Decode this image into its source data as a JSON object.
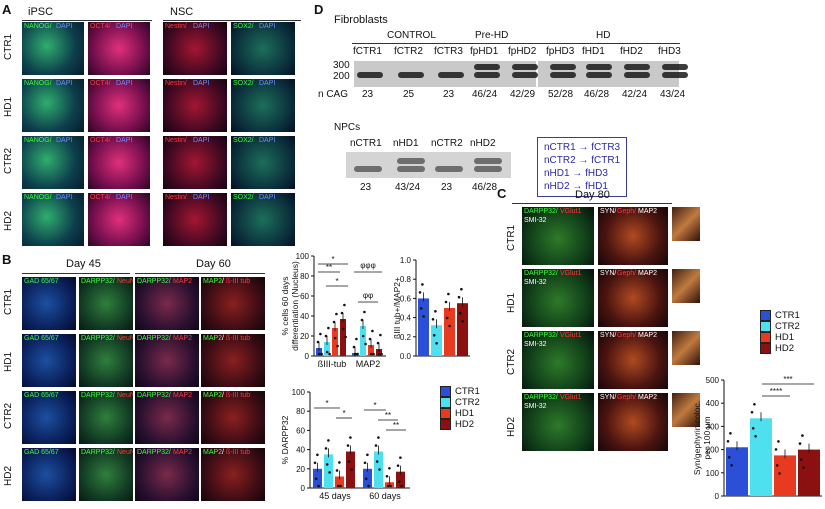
{
  "panel_letters": {
    "a": "A",
    "b": "B",
    "c": "C",
    "d": "D"
  },
  "panelA": {
    "group_ipsc": "iPSC",
    "group_nsc": "NSC",
    "rows": [
      "CTR1",
      "HD1",
      "CTR2",
      "HD2"
    ],
    "row_marks": {
      "nanog": [
        "NANOG/",
        "NANOG/",
        "NANOG/",
        "NANOG/"
      ],
      "dapi": [
        "DAPI",
        "DAPI",
        "DAPI",
        "DAPI"
      ],
      "oct4": [
        "OCT4/",
        "OCT4/",
        "OCT4/",
        "OCT4/"
      ],
      "nestin": [
        "Nestin/",
        "Nestin/",
        "Nestin/",
        "Nestin/"
      ],
      "sox2": [
        "SOX2/",
        "SOX2/",
        "SOX2/",
        "SOX2/"
      ]
    }
  },
  "panelB": {
    "day45": "Day 45",
    "day60": "Day 60",
    "rows": [
      "CTR1",
      "HD1",
      "CTR2",
      "HD2"
    ],
    "gad": "GAD 65/67",
    "darpp": "DARPP32/",
    "neun": "NeuN",
    "map2": "MAP2",
    "btub": "ß-III tub",
    "sep": "/"
  },
  "panelC": {
    "day80": "Day 80",
    "rows": [
      "CTR1",
      "HD1",
      "CTR2",
      "HD2"
    ],
    "darpp": "DARPP32/",
    "vglut": "VGlut1",
    "smi": "SMI-32",
    "syn": "SYN/",
    "geph": "Geph/",
    "map2": "MAP2"
  },
  "panelD": {
    "fibroblasts": "Fibroblasts",
    "groups": [
      "CONTROL",
      "Pre-HD",
      "HD"
    ],
    "lanes": [
      "fCTR1",
      "fCTR2",
      "fCTR3",
      "fpHD1",
      "fpHD2",
      "fpHD3",
      "fHD1",
      "fHD2",
      "fHD3"
    ],
    "ncag_label": "n CAG",
    "ncag": [
      "23",
      "25",
      "23",
      "46/24",
      "42/29",
      "52/28",
      "46/28",
      "42/24",
      "43/24"
    ],
    "markers": [
      "300",
      "200"
    ],
    "npcs": "NPCs",
    "npc_lanes": [
      "nCTR1",
      "nHD1",
      "nCTR2",
      "nHD2"
    ],
    "npc_cag": [
      "23",
      "43/24",
      "23",
      "46/28"
    ],
    "mapping": [
      "nCTR1 → fCTR3",
      "nCTR2 → fCTR1",
      "nHD1 → fHD3",
      "nHD2 → fHD1"
    ]
  },
  "colors": {
    "CTR1": "#2b4fd6",
    "CTR2": "#4fe0f0",
    "HD1": "#e83a20",
    "HD2": "#8b1010"
  },
  "legend": [
    "CTR1",
    "CTR2",
    "HD1",
    "HD2"
  ],
  "chart_data": [
    {
      "type": "bar",
      "id": "cells60",
      "categories": [
        "ßIII-tub",
        "MAP2"
      ],
      "series": [
        {
          "name": "CTR1",
          "values": [
            8,
            3
          ]
        },
        {
          "name": "CTR2",
          "values": [
            14,
            30
          ]
        },
        {
          "name": "HD1",
          "values": [
            28,
            11
          ]
        },
        {
          "name": "HD2",
          "values": [
            37,
            7
          ]
        }
      ],
      "ylabel": "% cells 60 days differentiation (Nucleus)",
      "ylim": [
        0,
        100
      ],
      "yticks": [
        0,
        20,
        40,
        60,
        80,
        100
      ],
      "annotations": [
        "*",
        "**",
        "*",
        "φφφ",
        "φφ"
      ]
    },
    {
      "type": "bar",
      "id": "ratio",
      "series": [
        {
          "name": "CTR1",
          "values": [
            0.6
          ]
        },
        {
          "name": "CTR2",
          "values": [
            0.32
          ]
        },
        {
          "name": "HD1",
          "values": [
            0.5
          ]
        },
        {
          "name": "HD2",
          "values": [
            0.55
          ]
        }
      ],
      "ylabel": "ßIII tub+/MAP2+",
      "ylim": [
        0,
        1.0
      ],
      "yticks": [
        "0.0",
        "0.2",
        "0.4",
        "0.6",
        "0.8",
        "1.0"
      ]
    },
    {
      "type": "bar",
      "id": "darpp",
      "categories": [
        "45 days",
        "60 days"
      ],
      "series": [
        {
          "name": "CTR1",
          "values": [
            20,
            20
          ]
        },
        {
          "name": "CTR2",
          "values": [
            35,
            38
          ]
        },
        {
          "name": "HD1",
          "values": [
            12,
            6
          ]
        },
        {
          "name": "HD2",
          "values": [
            38,
            17
          ]
        }
      ],
      "ylabel": "% DARPP32",
      "ylim": [
        0,
        100
      ],
      "yticks": [
        0,
        20,
        40,
        60,
        80,
        100
      ],
      "annotations": [
        "*",
        "*",
        "*",
        "**",
        "**"
      ]
    },
    {
      "type": "bar",
      "id": "syn",
      "series": [
        {
          "name": "CTR1",
          "values": [
            210
          ]
        },
        {
          "name": "CTR2",
          "values": [
            335
          ]
        },
        {
          "name": "HD1",
          "values": [
            175
          ]
        },
        {
          "name": "HD2",
          "values": [
            200
          ]
        }
      ],
      "ylabel": "Syn/gephyrin coloc. per 100 µm",
      "ylim": [
        0,
        500
      ],
      "yticks": [
        0,
        100,
        200,
        300,
        400,
        500
      ],
      "annotations": [
        "***",
        "****"
      ]
    }
  ]
}
